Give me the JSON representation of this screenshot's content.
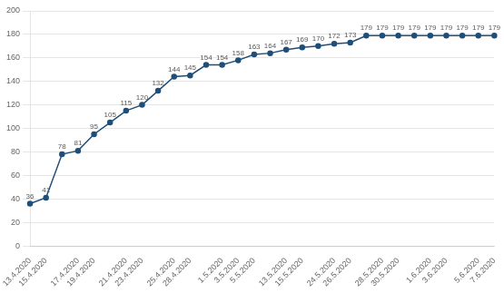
{
  "chart_data": {
    "type": "line",
    "categories": [
      "13.4.2020",
      "15.4.2020",
      null,
      "17.4.2020",
      "19.4.2020",
      null,
      "21.4.2020",
      "23.4.2020",
      null,
      "25.4.2020",
      "28.4.2020",
      null,
      "1.5.2020",
      "3.5.2020",
      "5.5.2020",
      null,
      "13.5.2020",
      "15.5.2020",
      null,
      "24.5.2020",
      "26.5.2020",
      null,
      "28.5.2020",
      "30.5.2020",
      null,
      "1.6.2020",
      "3.6.2020",
      null,
      "5.6.2020",
      "7.6.2020"
    ],
    "values": [
      36,
      41,
      78,
      81,
      95,
      105,
      115,
      120,
      132,
      144,
      145,
      154,
      154,
      158,
      163,
      164,
      167,
      169,
      170,
      172,
      173,
      179,
      179,
      179,
      179,
      179,
      179,
      179,
      179,
      179
    ],
    "color": "#1F4E79",
    "marker": "circle",
    "ylim": [
      0,
      200
    ],
    "yticks": [
      0,
      20,
      40,
      60,
      80,
      100,
      120,
      140,
      160,
      180,
      200
    ],
    "grid": true,
    "data_labels": true
  }
}
